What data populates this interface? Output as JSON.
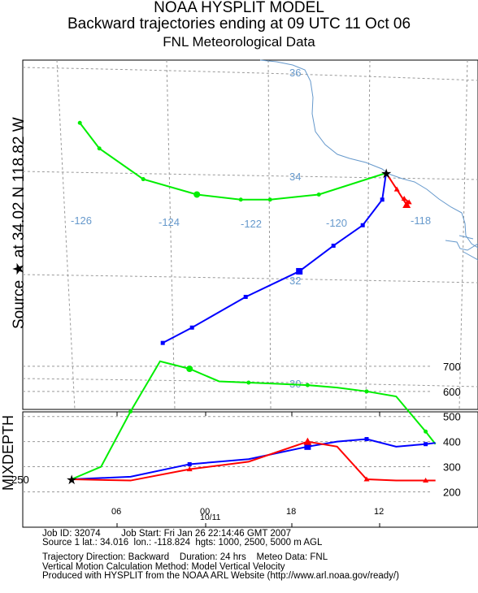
{
  "header": {
    "line1": "NOAA HYSPLIT MODEL",
    "line2": "Backward trajectories ending at 09 UTC 11 Oct 06",
    "line3": "FNL  Meteorological Data"
  },
  "side_label": "Source ★ at   34.02 N  118.82 W",
  "chart_data": [
    {
      "type": "line",
      "panel": "map",
      "lon_labels": [
        "-126",
        "-124",
        "-122",
        "-120",
        "-118"
      ],
      "lat_labels": [
        "36",
        "34",
        "32",
        "30"
      ],
      "source": {
        "lat": 34.02,
        "lon": -118.82
      },
      "series": [
        {
          "color": "#00ee00",
          "marker": "circle",
          "points": [
            [
              -118.82,
              34.02
            ],
            [
              -120.2,
              33.6
            ],
            [
              -121.2,
              33.5
            ],
            [
              -121.8,
              33.5
            ],
            [
              -122.7,
              33.6
            ],
            [
              -123.8,
              33.9
            ],
            [
              -124.7,
              34.5
            ],
            [
              -125.1,
              35.0
            ]
          ]
        },
        {
          "color": "#0000ff",
          "marker": "square",
          "points": [
            [
              -118.82,
              34.02
            ],
            [
              -118.9,
              33.5
            ],
            [
              -119.3,
              33.0
            ],
            [
              -119.9,
              32.6
            ],
            [
              -120.6,
              32.1
            ],
            [
              -121.7,
              31.6
            ],
            [
              -122.8,
              31.0
            ],
            [
              -123.4,
              30.7
            ]
          ]
        },
        {
          "color": "#ff0000",
          "marker": "triangle",
          "points": [
            [
              -118.82,
              34.02
            ],
            [
              -118.6,
              33.7
            ],
            [
              -118.4,
              33.4
            ],
            [
              -118.35,
              33.45
            ],
            [
              -118.45,
              33.52
            ]
          ]
        }
      ]
    },
    {
      "type": "line",
      "panel": "height",
      "ylabel": "MIXDEPTH",
      "y_ticks": [
        "700",
        "600",
        "500",
        "400",
        "300",
        "200"
      ],
      "ylim": [
        150,
        750
      ],
      "x_ticks": [
        "06",
        "00",
        "18",
        "12"
      ],
      "x_sub": "10/11",
      "source_value_label": "250",
      "series": [
        {
          "color": "#00ee00",
          "marker": "circle",
          "values": [
            [
              0,
              250
            ],
            [
              3,
              300
            ],
            [
              6,
              520
            ],
            [
              9,
              720
            ],
            [
              12,
              690
            ],
            [
              15,
              640
            ],
            [
              18,
              635
            ],
            [
              21,
              630
            ],
            [
              24,
              625
            ],
            [
              27,
              615
            ],
            [
              30,
              600
            ],
            [
              33,
              580
            ],
            [
              36,
              440
            ],
            [
              37,
              390
            ]
          ]
        },
        {
          "color": "#0000ff",
          "marker": "square",
          "values": [
            [
              0,
              250
            ],
            [
              6,
              260
            ],
            [
              12,
              310
            ],
            [
              18,
              330
            ],
            [
              24,
              380
            ],
            [
              27,
              400
            ],
            [
              30,
              410
            ],
            [
              33,
              380
            ],
            [
              36,
              390
            ],
            [
              37,
              395
            ]
          ]
        },
        {
          "color": "#ff0000",
          "marker": "triangle",
          "values": [
            [
              0,
              250
            ],
            [
              6,
              245
            ],
            [
              12,
              290
            ],
            [
              18,
              320
            ],
            [
              24,
              400
            ],
            [
              27,
              380
            ],
            [
              30,
              250
            ],
            [
              33,
              245
            ],
            [
              36,
              245
            ],
            [
              37,
              245
            ]
          ]
        }
      ]
    }
  ],
  "info": {
    "line1": "Job ID: 32074        Job Start: Fri Jan 26 22:14:46 GMT 2007",
    "line2": "Source 1 lat.: 34.016  lon.: -118.824  hgts: 1000, 2500, 5000 m AGL",
    "line3": "Trajectory Direction: Backward    Duration: 24 hrs    Meteo Data: FNL",
    "line4": "Vertical Motion Calculation Method: Model Vertical Velocity",
    "line5": "Produced with HYSPLIT from the NOAA ARL Website (http://www.arl.noaa.gov/ready/)"
  }
}
